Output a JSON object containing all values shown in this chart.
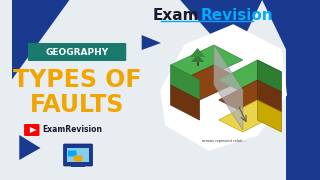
{
  "bg_color": "#e8edf2",
  "title_exam": "Exam",
  "title_revision": "Revision",
  "title_color_exam": "#1a1a2e",
  "title_color_revision": "#00aaff",
  "geo_label": "GEOGRAPHY",
  "geo_bg": "#1a7a6e",
  "geo_text_color": "#ffffff",
  "main_line1": "TYPES OF",
  "main_line2": "FAULTS",
  "main_text_color": "#f0a500",
  "channel_text": "ExamRevision",
  "channel_text_color": "#1a1a2e",
  "yt_red": "#ff0000",
  "blue_dark": "#1a3a8f",
  "underline_color": "#00aaff",
  "arrow_color": "#f0a500"
}
